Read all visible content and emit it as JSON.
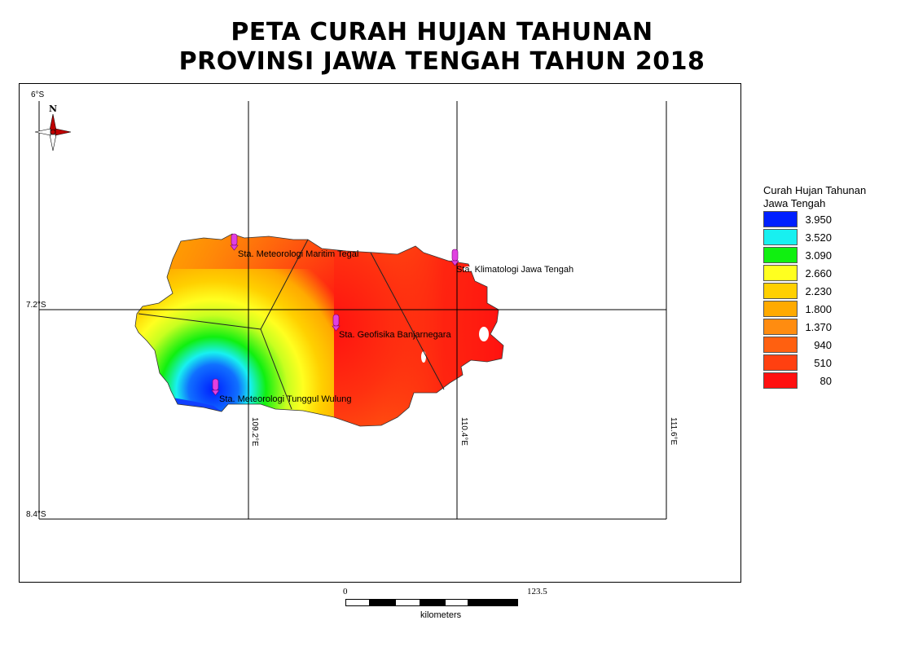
{
  "title": {
    "line1": "PETA CURAH HUJAN TAHUNAN",
    "line2": "PROVINSI JAWA TENGAH TAHUN 2018"
  },
  "map": {
    "lat_labels": [
      "6°S",
      "7.2°S",
      "8.4°S"
    ],
    "lon_labels": [
      "109.2°E",
      "110.4°E",
      "111.6°E"
    ],
    "north_label": "N",
    "stations": [
      {
        "name": "Sta. Meteorologi Maritim Tegal"
      },
      {
        "name": "Sta. Klimatologi Jawa Tengah"
      },
      {
        "name": "Sta. Geofisika Banjarnegara"
      },
      {
        "name": "Sta. Meteorologi Tunggul Wulung"
      }
    ],
    "marker_color": "#e040e0"
  },
  "legend": {
    "title_line1": "Curah Hujan Tahunan",
    "title_line2": "Jawa Tengah",
    "classes": [
      {
        "label": "3.950",
        "color": "#0020ff"
      },
      {
        "label": "3.520",
        "color": "#18f0f0"
      },
      {
        "label": "3.090",
        "color": "#10f010"
      },
      {
        "label": "2.660",
        "color": "#ffff20"
      },
      {
        "label": "2.230",
        "color": "#ffd000"
      },
      {
        "label": "1.800",
        "color": "#ffaa00"
      },
      {
        "label": "1.370",
        "color": "#ff8c10"
      },
      {
        "label": "940",
        "color": "#ff6010"
      },
      {
        "label": "510",
        "color": "#ff4010"
      },
      {
        "label": "80",
        "color": "#ff1010"
      }
    ]
  },
  "scale": {
    "start": "0",
    "end": "123.5",
    "unit": "kilometers"
  }
}
